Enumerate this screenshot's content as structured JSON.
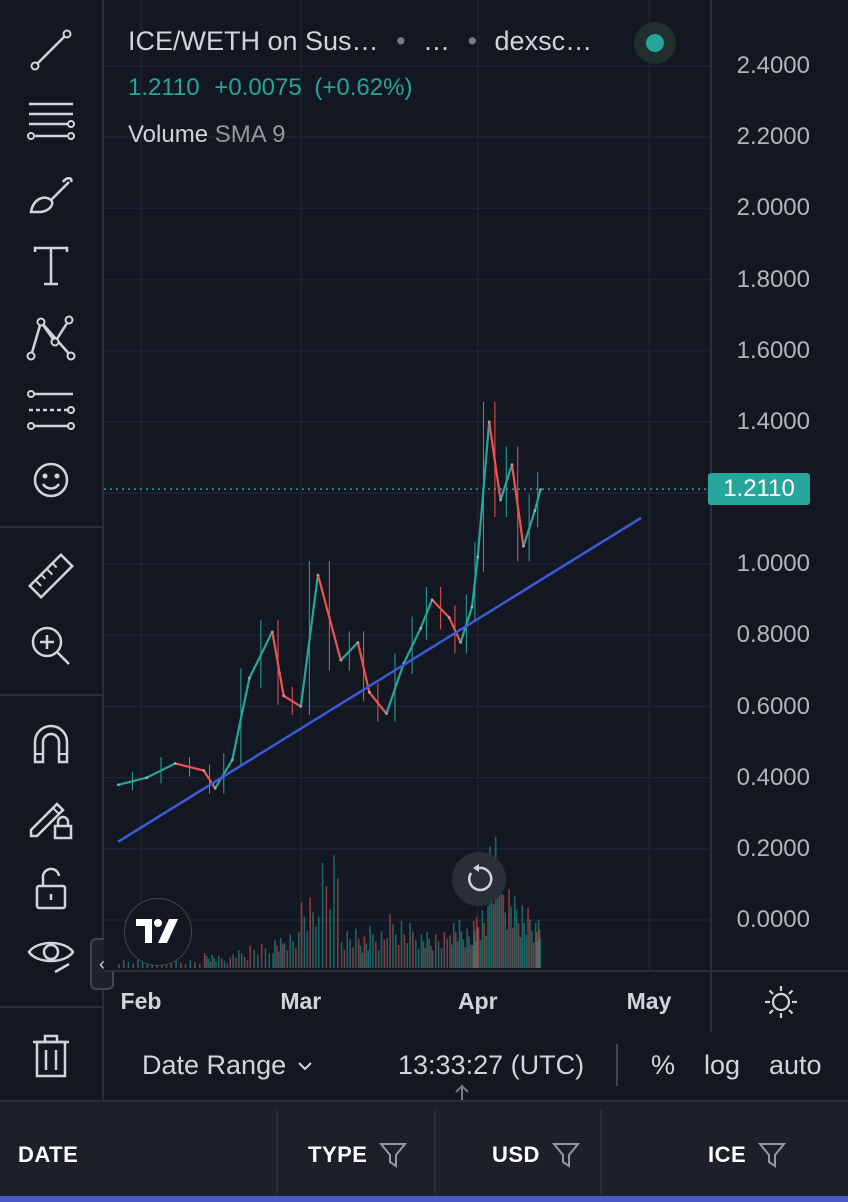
{
  "toolbar": {
    "tools": [
      {
        "name": "trend-line-icon"
      },
      {
        "name": "fib-retracement-icon"
      },
      {
        "name": "brush-icon"
      },
      {
        "name": "text-tool-icon"
      },
      {
        "name": "pattern-icon"
      },
      {
        "name": "prediction-icon"
      },
      {
        "name": "emoji-icon"
      },
      {
        "name": "ruler-icon"
      },
      {
        "name": "zoom-in-icon"
      },
      {
        "name": "magnet-icon"
      },
      {
        "name": "lock-drawing-icon"
      },
      {
        "name": "unlock-icon"
      },
      {
        "name": "hide-drawings-icon"
      },
      {
        "name": "trash-icon"
      }
    ],
    "collapse_label": "‹"
  },
  "legend": {
    "symbol": "ICE/WETH on Sus…",
    "separator": "•",
    "interval": "…",
    "source": "dexsc…",
    "price": "1.2110",
    "change": "+0.0075",
    "change_pct": "(+0.62%)",
    "volume_label": "Volume",
    "volume_sma": "SMA 9"
  },
  "colors": {
    "up": "#26a69a",
    "down": "#ef5350",
    "trendline": "#3b5bdb",
    "background": "#131722"
  },
  "price_axis": {
    "ticks": [
      "2.4000",
      "2.2000",
      "2.0000",
      "1.8000",
      "1.6000",
      "1.4000",
      "1.2000",
      "1.0000",
      "0.8000",
      "0.6000",
      "0.4000",
      "0.2000",
      "0.0000"
    ],
    "current_price": "1.2110"
  },
  "time_axis": {
    "ticks": [
      "Feb",
      "Mar",
      "Apr",
      "May"
    ]
  },
  "bottom_bar": {
    "date_range": "Date Range",
    "time": "13:33:27 (UTC)",
    "percent": "%",
    "log": "log",
    "auto": "auto"
  },
  "table": {
    "columns": [
      "DATE",
      "TYPE",
      "USD",
      "ICE"
    ]
  },
  "chart_data": {
    "type": "line",
    "title": "ICE/WETH on Sus…",
    "ylim": [
      0,
      2.4
    ],
    "x": [
      "Jan 28",
      "Feb 2",
      "Feb 7",
      "Feb 12",
      "Feb 14",
      "Feb 17",
      "Feb 20",
      "Feb 24",
      "Feb 26",
      "Mar 1",
      "Mar 4",
      "Mar 8",
      "Mar 11",
      "Mar 13",
      "Mar 16",
      "Mar 19",
      "Mar 22",
      "Mar 24",
      "Mar 27",
      "Mar 29",
      "Mar 31",
      "Apr 1",
      "Apr 3",
      "Apr 5",
      "Apr 7",
      "Apr 9",
      "Apr 11",
      "Apr 12"
    ],
    "series": [
      {
        "values": [
          0.38,
          0.4,
          0.44,
          0.42,
          0.37,
          0.45,
          0.68,
          0.81,
          0.63,
          0.6,
          0.97,
          0.73,
          0.78,
          0.64,
          0.58,
          0.72,
          0.82,
          0.9,
          0.85,
          0.78,
          0.88,
          1.02,
          1.4,
          1.18,
          1.28,
          1.05,
          1.15,
          1.21
        ]
      }
    ],
    "trendline": {
      "from": {
        "x": "Jan 28",
        "y": 0.22
      },
      "to": {
        "x": "May 1",
        "y": 1.13
      }
    },
    "volume": [
      3,
      4,
      3,
      5,
      4,
      6,
      8,
      10,
      12,
      25,
      40,
      14,
      12,
      14,
      18,
      15,
      12,
      12,
      16,
      14,
      18,
      22,
      50,
      30,
      24,
      20,
      16,
      12
    ]
  }
}
